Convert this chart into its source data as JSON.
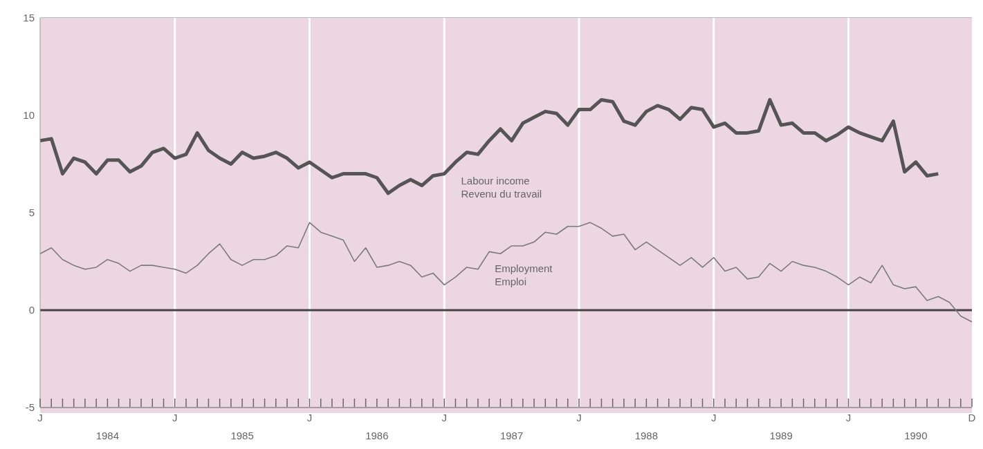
{
  "chart_data": {
    "type": "line",
    "categories": [
      "J",
      null,
      null,
      null,
      null,
      null,
      null,
      null,
      null,
      null,
      null,
      null,
      "J",
      null,
      null,
      null,
      null,
      null,
      null,
      null,
      null,
      null,
      null,
      null,
      "J",
      null,
      null,
      null,
      null,
      null,
      null,
      null,
      null,
      null,
      null,
      null,
      "J",
      null,
      null,
      null,
      null,
      null,
      null,
      null,
      null,
      null,
      null,
      null,
      "J",
      null,
      null,
      null,
      null,
      null,
      null,
      null,
      null,
      null,
      null,
      null,
      "J",
      null,
      null,
      null,
      null,
      null,
      null,
      null,
      null,
      null,
      null,
      null,
      "J",
      null,
      null,
      null,
      null,
      null,
      null,
      null,
      null,
      null,
      null,
      "D"
    ],
    "series": [
      {
        "name": "Labour income\nRevenu du travail",
        "color": "#555555",
        "values": [
          8.7,
          8.8,
          7.0,
          7.8,
          7.6,
          7.0,
          7.7,
          7.7,
          7.1,
          7.4,
          8.1,
          8.3,
          7.8,
          8.0,
          9.1,
          8.2,
          7.8,
          7.5,
          8.1,
          7.8,
          7.9,
          8.1,
          7.8,
          7.3,
          7.6,
          7.2,
          6.8,
          7.0,
          7.0,
          7.0,
          6.8,
          6.0,
          6.4,
          6.7,
          6.4,
          6.9,
          7.0,
          7.6,
          8.1,
          8.0,
          8.7,
          9.3,
          8.7,
          9.6,
          9.9,
          10.2,
          10.1,
          9.5,
          10.3,
          10.3,
          10.8,
          10.7,
          9.7,
          9.5,
          10.2,
          10.5,
          10.3,
          9.8,
          10.4,
          10.3,
          9.4,
          9.6,
          9.1,
          9.1,
          9.2,
          10.8,
          9.5,
          9.6,
          9.1,
          9.1,
          8.7,
          9.0,
          9.4,
          9.1,
          8.9,
          8.7,
          9.7,
          7.1,
          7.6,
          6.9,
          7.0,
          null,
          null,
          null
        ]
      },
      {
        "name": "Employment\nEmploi",
        "color": "#7a7a7a",
        "values": [
          2.9,
          3.2,
          2.6,
          2.3,
          2.1,
          2.2,
          2.6,
          2.4,
          2.0,
          2.3,
          2.3,
          2.2,
          2.1,
          1.9,
          2.3,
          2.9,
          3.4,
          2.6,
          2.3,
          2.6,
          2.6,
          2.8,
          3.3,
          3.2,
          4.5,
          4.0,
          3.8,
          3.6,
          2.5,
          3.2,
          2.2,
          2.3,
          2.5,
          2.3,
          1.7,
          1.9,
          1.3,
          1.7,
          2.2,
          2.1,
          3.0,
          2.9,
          3.3,
          3.3,
          3.5,
          4.0,
          3.9,
          4.3,
          4.3,
          4.5,
          4.2,
          3.8,
          3.9,
          3.1,
          3.5,
          3.1,
          2.7,
          2.3,
          2.7,
          2.2,
          2.7,
          2.0,
          2.2,
          1.6,
          1.7,
          2.4,
          2.0,
          2.5,
          2.3,
          2.2,
          2.0,
          1.7,
          1.3,
          1.7,
          1.4,
          2.3,
          1.3,
          1.1,
          1.2,
          0.5,
          0.7,
          0.4,
          -0.3,
          -0.6
        ]
      }
    ],
    "annotations": [
      "1984",
      "1985",
      "1986",
      "1987",
      "1988",
      "1989",
      "1990"
    ],
    "ylim": [
      -5,
      15
    ],
    "yticks": [
      -5,
      0,
      5,
      10,
      15
    ],
    "grid": true,
    "marker": "none",
    "line_style": "solid",
    "ref_lines": [
      {
        "axis": "y",
        "value": 0,
        "label": null,
        "color": "#444444"
      }
    ]
  }
}
